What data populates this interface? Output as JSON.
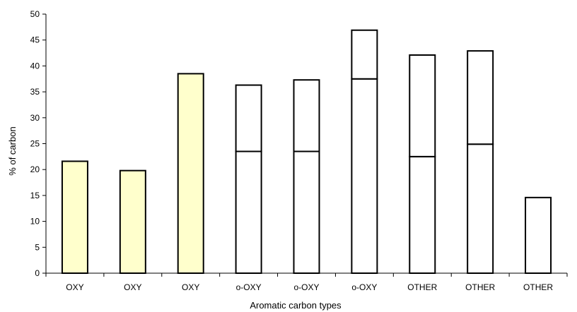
{
  "chart_data": {
    "type": "bar",
    "stacked": true,
    "title": "",
    "xlabel": "Aromatic carbon types",
    "ylabel": "% of carbon",
    "ylim": [
      0,
      50
    ],
    "yticks": [
      0,
      5,
      10,
      15,
      20,
      25,
      30,
      35,
      40,
      45,
      50
    ],
    "grid": false,
    "legend": "none",
    "categories": [
      "OXY",
      "OXY",
      "OXY",
      "o-OXY",
      "o-OXY",
      "o-OXY",
      "OTHER",
      "OTHER",
      "OTHER"
    ],
    "bars": [
      {
        "segments": [
          21.6
        ],
        "fill": "#ffffcc"
      },
      {
        "segments": [
          19.8
        ],
        "fill": "#ffffcc"
      },
      {
        "segments": [
          38.5
        ],
        "fill": "#ffffcc"
      },
      {
        "segments": [
          23.5,
          12.8
        ],
        "fill": "#ffffff"
      },
      {
        "segments": [
          23.5,
          13.8
        ],
        "fill": "#ffffff"
      },
      {
        "segments": [
          37.5,
          9.4
        ],
        "fill": "#ffffff"
      },
      {
        "segments": [
          22.5,
          19.6
        ],
        "fill": "#ffffff"
      },
      {
        "segments": [
          24.9,
          18.0
        ],
        "fill": "#ffffff"
      },
      {
        "segments": [
          14.6
        ],
        "fill": "#ffffff"
      }
    ],
    "colors": {
      "axis": "#000000",
      "outline": "#000000"
    }
  }
}
